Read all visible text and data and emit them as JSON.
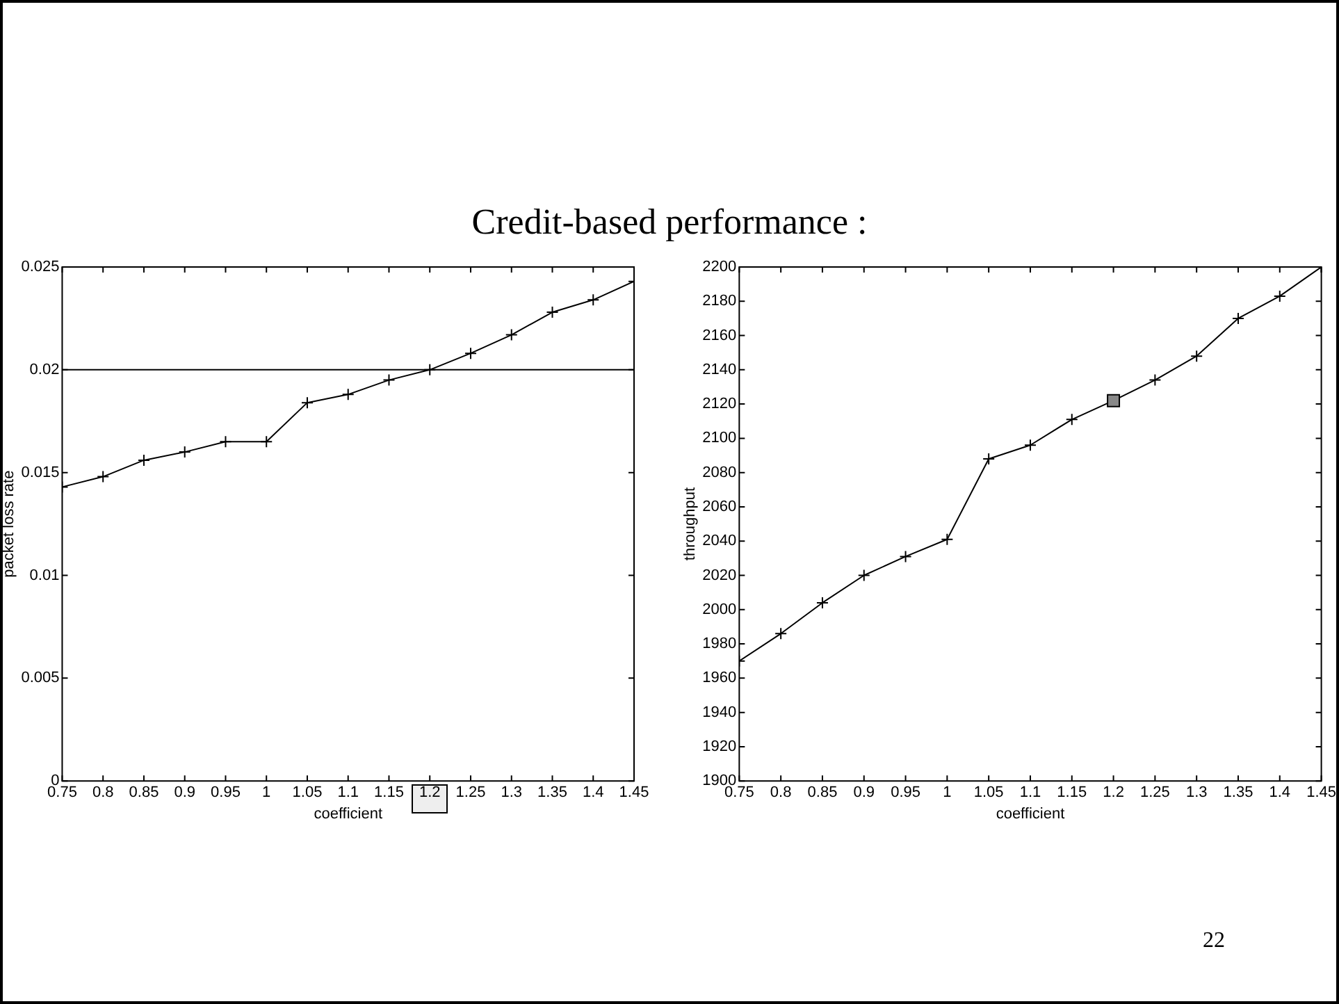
{
  "chart_data": [
    {
      "type": "line",
      "title": "Credit-based performance :",
      "xlabel": "coefficient",
      "ylabel": "packet loss rate",
      "x": [
        0.75,
        0.8,
        0.85,
        0.9,
        0.95,
        1,
        1.05,
        1.1,
        1.15,
        1.2,
        1.25,
        1.3,
        1.35,
        1.4,
        1.45
      ],
      "series": [
        {
          "color": "#000000",
          "values": [
            0.0143,
            0.0148,
            0.0156,
            0.016,
            0.0165,
            0.0165,
            0.0184,
            0.0188,
            0.0195,
            0.02,
            0.0208,
            0.0217,
            0.0228,
            0.0234,
            0.0243
          ]
        }
      ],
      "marker": "cross",
      "xlim": [
        0.75,
        1.45
      ],
      "xticks": [
        0.75,
        0.8,
        0.85,
        0.9,
        0.95,
        1,
        1.05,
        1.1,
        1.15,
        1.2,
        1.25,
        1.3,
        1.35,
        1.4,
        1.45
      ],
      "ylim": [
        0,
        0.025
      ],
      "yticks": [
        0,
        0.005,
        0.01,
        0.015,
        0.02,
        0.025
      ],
      "ref_lines": [
        {
          "axis": "y",
          "value": 0.02,
          "color": "#000000"
        }
      ]
    },
    {
      "type": "line",
      "xlabel": "coefficient",
      "ylabel": "throughput",
      "x": [
        0.75,
        0.8,
        0.85,
        0.9,
        0.95,
        1,
        1.05,
        1.1,
        1.15,
        1.2,
        1.25,
        1.3,
        1.35,
        1.4,
        1.45
      ],
      "series": [
        {
          "color": "#000000",
          "values": [
            1970,
            1986,
            2004,
            2020,
            2031,
            2041,
            2088,
            2096,
            2111,
            2122,
            2134,
            2148,
            2170,
            2183,
            2200
          ]
        },
        {
          "type": "scatter",
          "marker": "square",
          "color": "#888888",
          "x": [
            1.2
          ],
          "values": [
            2122
          ]
        }
      ],
      "marker": "cross",
      "xlim": [
        0.75,
        1.45
      ],
      "xticks": [
        0.75,
        0.8,
        0.85,
        0.9,
        0.95,
        1,
        1.05,
        1.1,
        1.15,
        1.2,
        1.25,
        1.3,
        1.35,
        1.4,
        1.45
      ],
      "ylim": [
        1900,
        2200
      ],
      "yticks": [
        1900,
        1920,
        1940,
        1960,
        1980,
        2000,
        2020,
        2040,
        2060,
        2080,
        2100,
        2120,
        2140,
        2160,
        2180,
        2200
      ],
      "annotations": [
        "22"
      ]
    }
  ]
}
